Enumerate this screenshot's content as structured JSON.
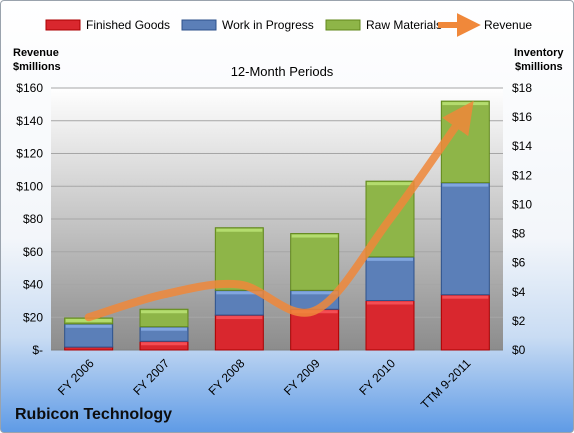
{
  "chart_data": {
    "type": "bar",
    "title": "Rubicon Technology",
    "subtitle": "12-Month Periods",
    "categories": [
      "FY 2006",
      "FY 2007",
      "FY 2008",
      "FY 2009",
      "FY 2010",
      "TTM 9-2011"
    ],
    "series": [
      {
        "name": "Finished Goods",
        "axis": "right",
        "stacked": true,
        "color": "#d9272e",
        "values": [
          0.2,
          0.6,
          2.4,
          2.8,
          3.4,
          3.8
        ]
      },
      {
        "name": "Work in Progress",
        "axis": "right",
        "stacked": true,
        "color": "#5b7fb8",
        "values": [
          1.6,
          1.0,
          1.7,
          1.3,
          3.0,
          7.7
        ]
      },
      {
        "name": "Raw Materials",
        "axis": "right",
        "stacked": true,
        "color": "#8eb548",
        "values": [
          0.4,
          1.2,
          4.3,
          3.9,
          5.2,
          5.6
        ]
      },
      {
        "name": "Revenue",
        "axis": "left",
        "type": "line",
        "color": "#f0883a",
        "values": [
          20,
          34,
          40,
          24,
          80,
          145
        ]
      }
    ],
    "y_left": {
      "label": "Revenue $millions",
      "ylim": [
        0,
        160
      ],
      "ticks": [
        "$-",
        "$20",
        "$40",
        "$60",
        "$80",
        "$100",
        "$120",
        "$140",
        "$160"
      ]
    },
    "y_right": {
      "label": "Inventory $millions",
      "ylim": [
        0,
        18
      ],
      "ticks": [
        "$0",
        "$2",
        "$4",
        "$6",
        "$8",
        "$10",
        "$12",
        "$14",
        "$16",
        "$18"
      ]
    },
    "grid": true,
    "legend_position": "top"
  },
  "labels": {
    "left_axis_line1": "Revenue",
    "left_axis_line2": "$millions",
    "right_axis_line1": "Inventory",
    "right_axis_line2": "$millions"
  }
}
